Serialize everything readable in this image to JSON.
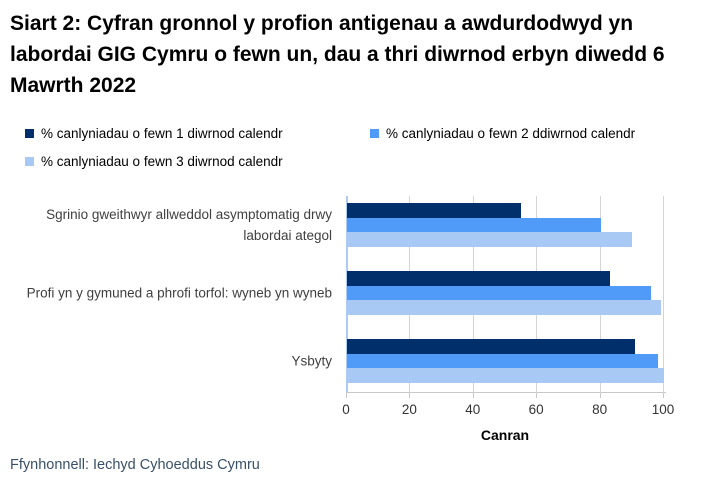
{
  "title": "Siart 2: Cyfran gronnol y profion antigenau a awdurdodwyd yn labordai GIG Cymru o fewn un, dau a thri diwrnod erbyn diwedd 6 Mawrth 2022",
  "footer": {
    "source": "Ffynhonnell: Iechyd Cyhoeddus Cymru"
  },
  "colors": {
    "series_1_day": "#002F6B",
    "series_2_days": "#509AF8",
    "series_3_days": "#A9C9F5",
    "gridline": "#D4D4D4",
    "y_axis_line": "#AECBF5",
    "x_axis_line": "#C9C9C9"
  },
  "chart_data": {
    "type": "bar",
    "orientation": "horizontal",
    "title": "Siart 2: Cyfran gronnol y profion antigenau a awdurdodwyd yn labordai GIG Cymru o fewn un, dau a thri diwrnod erbyn diwedd 6 Mawrth 2022",
    "categories": [
      "Sgrinio gweithwyr allweddol asymptomatig drwy labordai ategol",
      "Profi yn y gymuned a phrofi torfol: wyneb yn wyneb",
      "Ysbyty"
    ],
    "series": [
      {
        "name": "% canlyniadau o fewn 1 diwrnod calendr",
        "color": "#002F6B",
        "values": [
          55,
          83,
          91
        ]
      },
      {
        "name": "% canlyniadau o fewn 2 ddiwrnod calendr",
        "color": "#509AF8",
        "values": [
          80,
          96,
          98
        ]
      },
      {
        "name": "% canlyniadau o fewn 3 diwrnod calendr",
        "color": "#A9C9F5",
        "values": [
          90,
          99,
          100
        ]
      }
    ],
    "xlabel": "Canran",
    "ylabel": "",
    "xlim": [
      0,
      100
    ],
    "xticks": [
      0,
      20,
      40,
      60,
      80,
      100
    ],
    "grid": true,
    "legend_position": "top-left"
  }
}
